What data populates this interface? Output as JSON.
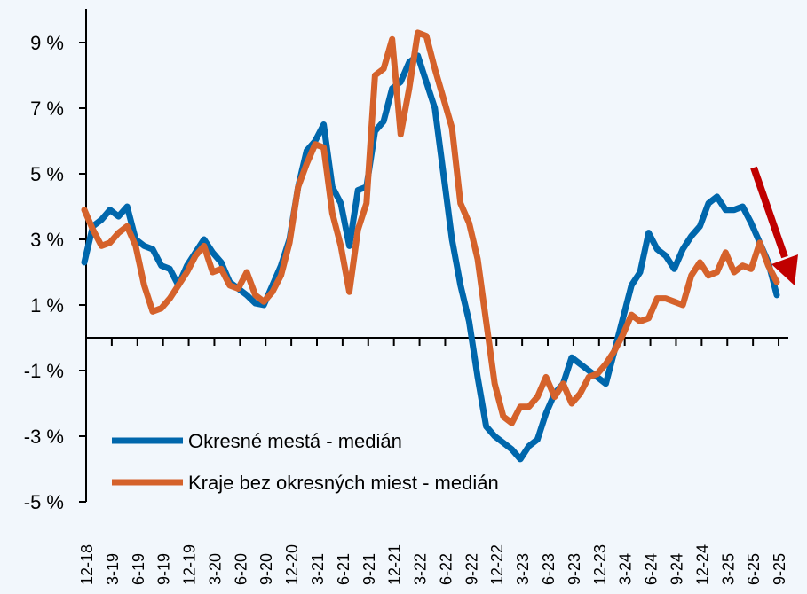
{
  "chart_data": {
    "type": "line",
    "title": "",
    "xlabel": "",
    "ylabel": "",
    "ylim": [
      -5,
      10
    ],
    "yticks": [
      9,
      7,
      5,
      3,
      1,
      -1,
      -3,
      -5
    ],
    "ytick_labels": [
      "9 %",
      "7 %",
      "5 %",
      "3 %",
      "1 %",
      "-1 %",
      "-3 %",
      "-5 %"
    ],
    "xtick_labels": [
      "12-18",
      "3-19",
      "6-19",
      "9-19",
      "12-19",
      "3-20",
      "6-20",
      "9-20",
      "12-20",
      "3-21",
      "6-21",
      "9-21",
      "12-21",
      "3-22",
      "6-22",
      "9-22",
      "12-22",
      "3-23",
      "6-23",
      "9-23",
      "12-23",
      "3-24",
      "6-24",
      "9-24",
      "12-24",
      "3-25",
      "6-25",
      "9-25"
    ],
    "x_start": "12-18",
    "x_end": "9-25",
    "frequency": "monthly",
    "legend_position": "bottom-left",
    "series": [
      {
        "name": "Okresné mestá - medián",
        "color": "#0067ac",
        "values": [
          2.3,
          3.4,
          3.6,
          3.9,
          3.7,
          4.0,
          3.0,
          2.8,
          2.7,
          2.2,
          2.1,
          1.6,
          2.2,
          2.6,
          3.0,
          2.6,
          2.3,
          1.7,
          1.5,
          1.3,
          1.05,
          1.0,
          1.6,
          2.2,
          3.0,
          4.6,
          5.7,
          6.0,
          6.5,
          4.6,
          4.1,
          2.8,
          4.5,
          4.6,
          6.3,
          6.6,
          7.6,
          7.8,
          8.4,
          8.6,
          7.8,
          7.0,
          5.0,
          3.0,
          1.6,
          0.5,
          -1.2,
          -2.7,
          -3.0,
          -3.2,
          -3.4,
          -3.7,
          -3.3,
          -3.1,
          -2.3,
          -1.7,
          -1.4,
          -0.6,
          -0.8,
          -1.0,
          -1.2,
          -1.4,
          -0.4,
          0.6,
          1.6,
          2.0,
          3.2,
          2.7,
          2.5,
          2.1,
          2.7,
          3.1,
          3.4,
          4.1,
          4.3,
          3.9,
          3.9,
          4.0,
          3.5,
          2.9,
          2.3,
          1.3
        ]
      },
      {
        "name": "Kraje bez okresných miest - medián",
        "color": "#d5622b",
        "values": [
          3.9,
          3.3,
          2.8,
          2.9,
          3.2,
          3.4,
          2.8,
          1.6,
          0.8,
          0.9,
          1.2,
          1.6,
          2.0,
          2.5,
          2.8,
          2.0,
          2.1,
          1.6,
          1.5,
          2.0,
          1.3,
          1.1,
          1.4,
          1.9,
          2.9,
          4.6,
          5.3,
          5.9,
          5.8,
          3.8,
          2.8,
          1.4,
          3.3,
          4.1,
          8.0,
          8.2,
          9.1,
          6.2,
          7.6,
          9.3,
          9.2,
          8.2,
          7.3,
          6.4,
          4.1,
          3.5,
          2.4,
          0.5,
          -1.4,
          -2.4,
          -2.6,
          -2.1,
          -2.1,
          -1.8,
          -1.2,
          -1.8,
          -1.4,
          -2.0,
          -1.7,
          -1.2,
          -1.1,
          -0.8,
          -0.4,
          0.1,
          0.7,
          0.5,
          0.6,
          1.2,
          1.2,
          1.1,
          1.0,
          1.9,
          2.3,
          1.9,
          2.0,
          2.6,
          2.0,
          2.2,
          2.1,
          2.9,
          2.2,
          1.7
        ]
      }
    ],
    "annotations": [
      {
        "type": "arrow",
        "direction": "down",
        "color": "#c00000",
        "note": "trend decline"
      }
    ]
  }
}
